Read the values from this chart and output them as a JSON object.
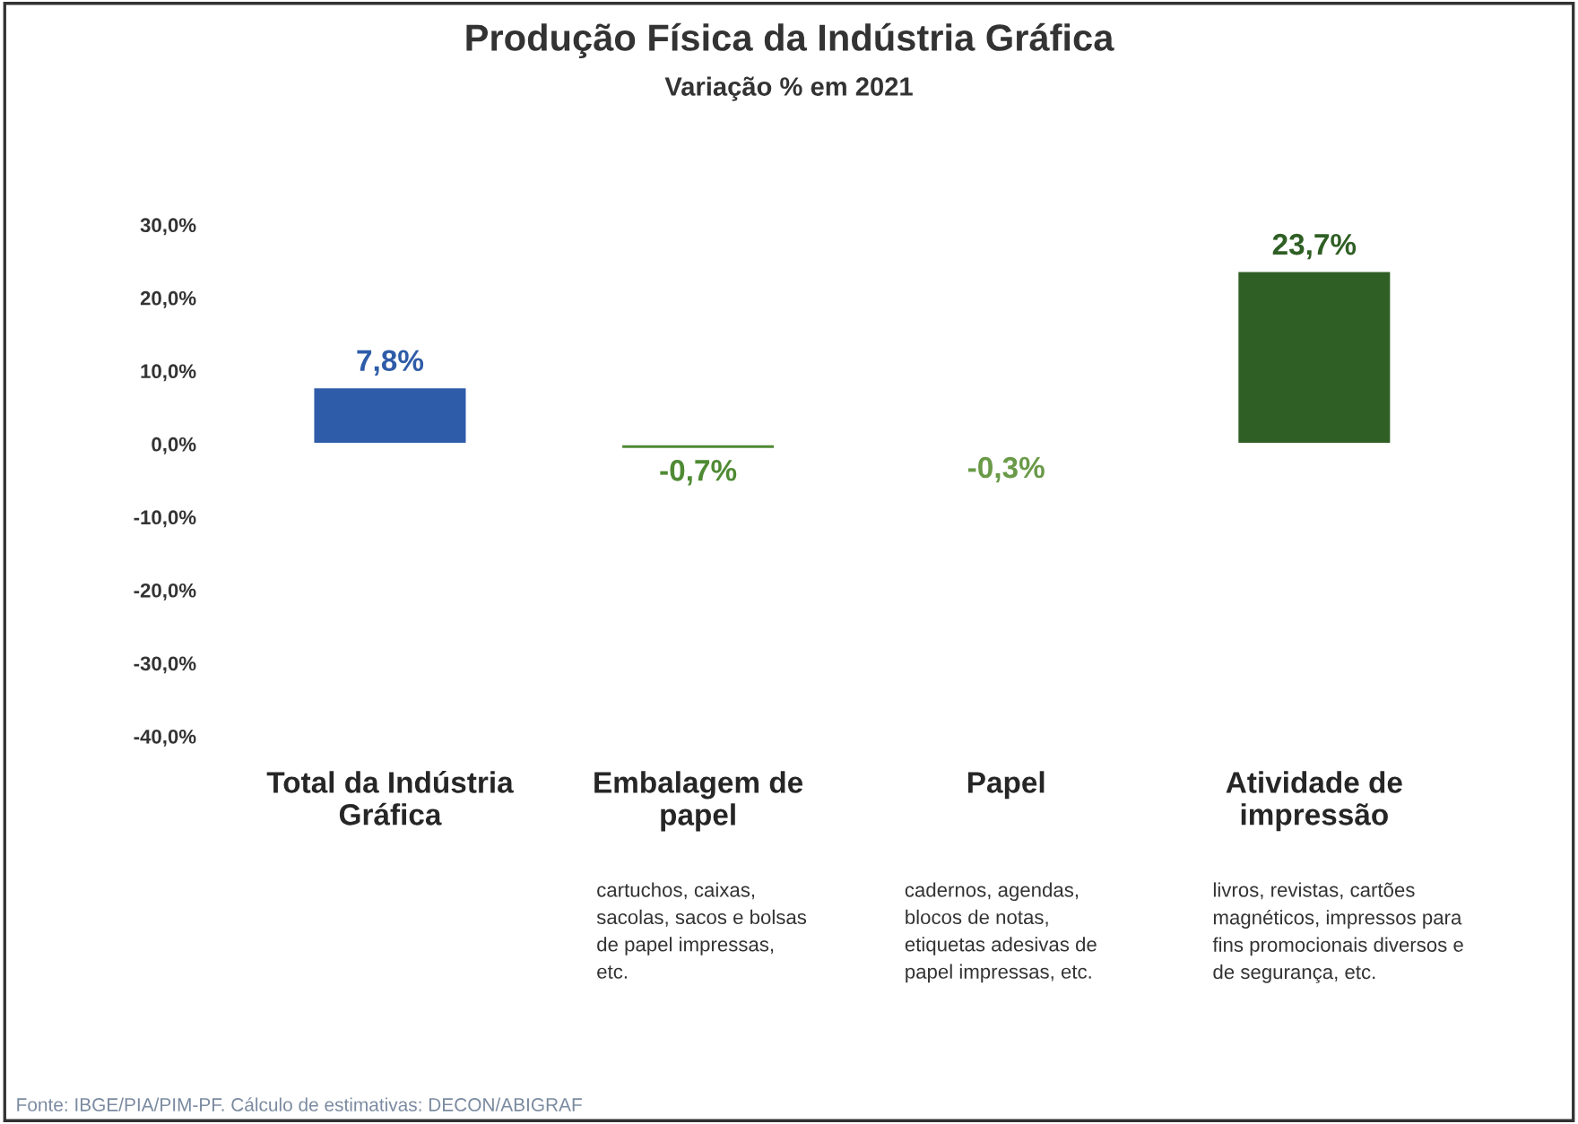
{
  "chart_data": {
    "type": "bar",
    "title": "Produção Física da Indústria Gráfica",
    "subtitle": "Variação % em 2021",
    "categories": [
      "Total da Indústria\nGráfica",
      "Embalagem de\npapel",
      "Papel",
      "Atividade de\nimpressão"
    ],
    "values": [
      7.8,
      -0.7,
      -0.3,
      23.7
    ],
    "colors": [
      "#2e5ca8",
      "#4f8a34",
      "#6a9a48",
      "#2f5f24"
    ],
    "value_labels": [
      "7,8%",
      "-0,7%",
      "-0,3%",
      "23,7%"
    ],
    "ylim": [
      -40,
      30
    ],
    "yticks": [
      {
        "value": 30,
        "label": "30,0%"
      },
      {
        "value": 20,
        "label": "20,0%"
      },
      {
        "value": 10,
        "label": "10,0%"
      },
      {
        "value": 0,
        "label": "0,0%"
      },
      {
        "value": -10,
        "label": "-10,0%"
      },
      {
        "value": -20,
        "label": "-20,0%"
      },
      {
        "value": -30,
        "label": "-30,0%"
      },
      {
        "value": -40,
        "label": "-40,0%"
      }
    ],
    "grid": false,
    "legend": false,
    "annotations": [
      "Fonte: IBGE/PIA/PIM-PF. Cálculo de estimativas: DECON/ABIGRAF",
      "cartuchos, caixas,\nsacolas, sacos e bolsas\nde papel impressas,\netc.",
      "cadernos, agendas,\nblocos de notas,\netiquetas adesivas de\npapel impressas, etc.",
      "livros, revistas, cartões\nmagnéticos, impressos para\nfins promocionais diversos e\nde segurança, etc."
    ]
  }
}
